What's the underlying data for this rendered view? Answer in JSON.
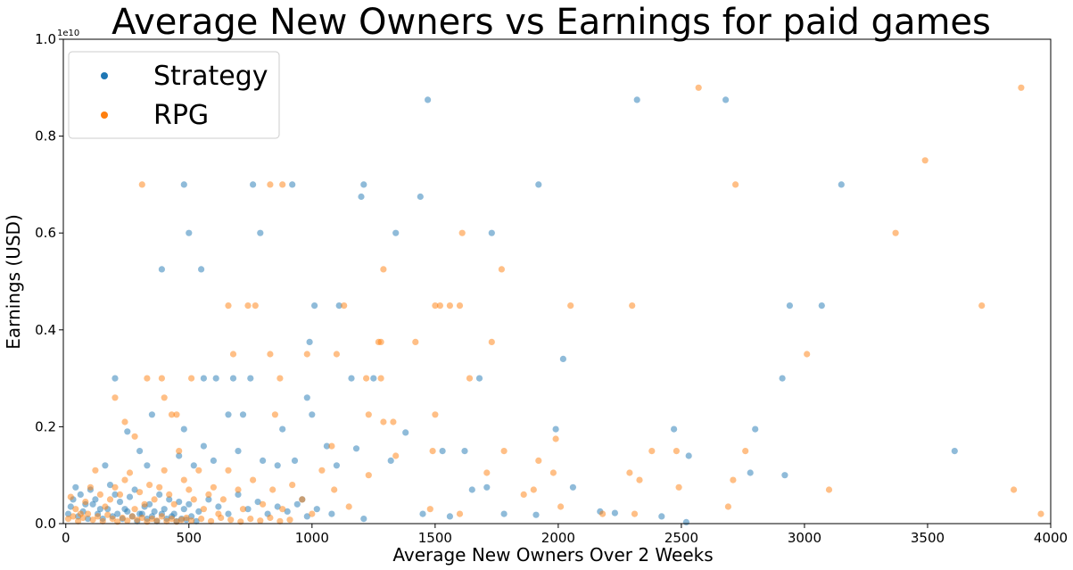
{
  "chart_data": {
    "type": "scatter",
    "title": "Average New Owners vs Earnings for paid games",
    "xlabel": "Average New Owners Over 2 Weeks",
    "ylabel": "Earnings (USD)",
    "y_offset_label": "1e10",
    "xlim": [
      -10,
      4000
    ],
    "ylim": [
      0,
      1.0
    ],
    "x_ticks": [
      0,
      500,
      1000,
      1500,
      2000,
      2500,
      3000,
      3500,
      4000
    ],
    "x_tick_labels": [
      "0",
      "500",
      "1000",
      "1500",
      "2000",
      "2500",
      "3000",
      "3500",
      "4000"
    ],
    "y_ticks": [
      0,
      0.2,
      0.4,
      0.6,
      0.8,
      1.0
    ],
    "y_tick_labels": [
      "0.0",
      "0.2",
      "0.4",
      "0.6",
      "0.8",
      "1.0"
    ],
    "legend_position": "top-left",
    "series": [
      {
        "name": "Strategy",
        "color": "#1f77b4",
        "points": [
          [
            1470,
            0.875
          ],
          [
            2320,
            0.875
          ],
          [
            2680,
            0.875
          ],
          [
            480,
            0.7
          ],
          [
            760,
            0.7
          ],
          [
            920,
            0.7
          ],
          [
            1210,
            0.7
          ],
          [
            1920,
            0.7
          ],
          [
            3150,
            0.7
          ],
          [
            1200,
            0.675
          ],
          [
            1440,
            0.675
          ],
          [
            500,
            0.6
          ],
          [
            790,
            0.6
          ],
          [
            1340,
            0.6
          ],
          [
            1730,
            0.6
          ],
          [
            390,
            0.525
          ],
          [
            550,
            0.525
          ],
          [
            1010,
            0.45
          ],
          [
            1110,
            0.45
          ],
          [
            2940,
            0.45
          ],
          [
            3070,
            0.45
          ],
          [
            990,
            0.375
          ],
          [
            2020,
            0.34
          ],
          [
            200,
            0.3
          ],
          [
            560,
            0.3
          ],
          [
            610,
            0.3
          ],
          [
            680,
            0.3
          ],
          [
            750,
            0.3
          ],
          [
            980,
            0.26
          ],
          [
            1160,
            0.3
          ],
          [
            1250,
            0.3
          ],
          [
            1680,
            0.3
          ],
          [
            2910,
            0.3
          ],
          [
            350,
            0.225
          ],
          [
            660,
            0.225
          ],
          [
            720,
            0.225
          ],
          [
            1000,
            0.225
          ],
          [
            1990,
            0.195
          ],
          [
            2470,
            0.195
          ],
          [
            2800,
            0.195
          ],
          [
            880,
            0.195
          ],
          [
            1380,
            0.188
          ],
          [
            1530,
            0.15
          ],
          [
            1620,
            0.15
          ],
          [
            3610,
            0.15
          ],
          [
            2530,
            0.14
          ],
          [
            2780,
            0.105
          ],
          [
            2920,
            0.1
          ],
          [
            480,
            0.195
          ],
          [
            560,
            0.16
          ],
          [
            1060,
            0.16
          ],
          [
            1180,
            0.155
          ],
          [
            250,
            0.19
          ],
          [
            300,
            0.15
          ],
          [
            330,
            0.12
          ],
          [
            460,
            0.14
          ],
          [
            520,
            0.12
          ],
          [
            600,
            0.13
          ],
          [
            700,
            0.15
          ],
          [
            800,
            0.13
          ],
          [
            860,
            0.12
          ],
          [
            930,
            0.13
          ],
          [
            1100,
            0.12
          ],
          [
            1320,
            0.13
          ],
          [
            1650,
            0.07
          ],
          [
            1710,
            0.075
          ],
          [
            2060,
            0.075
          ],
          [
            2170,
            0.025
          ],
          [
            2230,
            0.022
          ],
          [
            2420,
            0.015
          ],
          [
            2520,
            0.003
          ],
          [
            1780,
            0.02
          ],
          [
            1910,
            0.018
          ],
          [
            1450,
            0.02
          ],
          [
            1560,
            0.015
          ],
          [
            1080,
            0.02
          ],
          [
            1210,
            0.01
          ],
          [
            960,
            0.05
          ],
          [
            40,
            0.075
          ],
          [
            60,
            0.06
          ],
          [
            80,
            0.04
          ],
          [
            100,
            0.07
          ],
          [
            120,
            0.05
          ],
          [
            140,
            0.03
          ],
          [
            160,
            0.12
          ],
          [
            180,
            0.08
          ],
          [
            200,
            0.06
          ],
          [
            220,
            0.045
          ],
          [
            240,
            0.03
          ],
          [
            260,
            0.055
          ],
          [
            280,
            0.07
          ],
          [
            300,
            0.02
          ],
          [
            320,
            0.035
          ],
          [
            340,
            0.04
          ],
          [
            360,
            0.025
          ],
          [
            380,
            0.06
          ],
          [
            400,
            0.03
          ],
          [
            420,
            0.05
          ],
          [
            440,
            0.02
          ],
          [
            460,
            0.045
          ],
          [
            480,
            0.03
          ],
          [
            500,
            0.04
          ],
          [
            540,
            0.025
          ],
          [
            580,
            0.05
          ],
          [
            620,
            0.035
          ],
          [
            660,
            0.02
          ],
          [
            700,
            0.06
          ],
          [
            740,
            0.03
          ],
          [
            780,
            0.045
          ],
          [
            820,
            0.02
          ],
          [
            860,
            0.035
          ],
          [
            900,
            0.025
          ],
          [
            940,
            0.04
          ],
          [
            980,
            0.015
          ],
          [
            1020,
            0.03
          ],
          [
            10,
            0.02
          ],
          [
            20,
            0.035
          ],
          [
            30,
            0.05
          ],
          [
            50,
            0.015
          ],
          [
            70,
            0.025
          ],
          [
            90,
            0.01
          ],
          [
            110,
            0.04
          ],
          [
            130,
            0.02
          ],
          [
            150,
            0.01
          ],
          [
            170,
            0.03
          ],
          [
            190,
            0.015
          ],
          [
            210,
            0.02
          ],
          [
            230,
            0.01
          ],
          [
            250,
            0.025
          ],
          [
            270,
            0.015
          ],
          [
            290,
            0.005
          ],
          [
            310,
            0.02
          ],
          [
            330,
            0.01
          ],
          [
            350,
            0.015
          ],
          [
            370,
            0.005
          ],
          [
            390,
            0.02
          ],
          [
            410,
            0.01
          ],
          [
            430,
            0.015
          ],
          [
            450,
            0.005
          ],
          [
            470,
            0.01
          ],
          [
            490,
            0.008
          ],
          [
            510,
            0.015
          ],
          [
            530,
            0.005
          ]
        ]
      },
      {
        "name": "RPG",
        "color": "#ff7f0e",
        "points": [
          [
            2570,
            0.9
          ],
          [
            3880,
            0.9
          ],
          [
            3490,
            0.75
          ],
          [
            310,
            0.7
          ],
          [
            830,
            0.7
          ],
          [
            880,
            0.7
          ],
          [
            2720,
            0.7
          ],
          [
            1610,
            0.6
          ],
          [
            3370,
            0.6
          ],
          [
            1770,
            0.525
          ],
          [
            1290,
            0.525
          ],
          [
            660,
            0.45
          ],
          [
            740,
            0.45
          ],
          [
            770,
            0.45
          ],
          [
            1130,
            0.45
          ],
          [
            1500,
            0.45
          ],
          [
            1520,
            0.45
          ],
          [
            1560,
            0.45
          ],
          [
            1600,
            0.45
          ],
          [
            2050,
            0.45
          ],
          [
            2300,
            0.45
          ],
          [
            3720,
            0.45
          ],
          [
            1270,
            0.375
          ],
          [
            1280,
            0.375
          ],
          [
            1420,
            0.375
          ],
          [
            1730,
            0.375
          ],
          [
            680,
            0.35
          ],
          [
            830,
            0.35
          ],
          [
            980,
            0.35
          ],
          [
            1100,
            0.35
          ],
          [
            3010,
            0.35
          ],
          [
            200,
            0.26
          ],
          [
            330,
            0.3
          ],
          [
            390,
            0.3
          ],
          [
            400,
            0.26
          ],
          [
            510,
            0.3
          ],
          [
            870,
            0.3
          ],
          [
            1220,
            0.3
          ],
          [
            1280,
            0.3
          ],
          [
            1640,
            0.3
          ],
          [
            240,
            0.21
          ],
          [
            280,
            0.18
          ],
          [
            430,
            0.225
          ],
          [
            450,
            0.225
          ],
          [
            850,
            0.225
          ],
          [
            1230,
            0.225
          ],
          [
            1290,
            0.21
          ],
          [
            1330,
            0.21
          ],
          [
            1500,
            0.225
          ],
          [
            1990,
            0.175
          ],
          [
            1780,
            0.15
          ],
          [
            2380,
            0.15
          ],
          [
            2480,
            0.15
          ],
          [
            2760,
            0.15
          ],
          [
            1490,
            0.15
          ],
          [
            1340,
            0.14
          ],
          [
            1080,
            0.16
          ],
          [
            1920,
            0.13
          ],
          [
            1710,
            0.105
          ],
          [
            1980,
            0.105
          ],
          [
            2290,
            0.105
          ],
          [
            2710,
            0.09
          ],
          [
            3100,
            0.07
          ],
          [
            3850,
            0.07
          ],
          [
            1900,
            0.07
          ],
          [
            2180,
            0.02
          ],
          [
            1600,
            0.02
          ],
          [
            1480,
            0.03
          ],
          [
            2330,
            0.09
          ],
          [
            2490,
            0.075
          ],
          [
            2690,
            0.035
          ],
          [
            2310,
            0.02
          ],
          [
            3960,
            0.02
          ],
          [
            2010,
            0.035
          ],
          [
            1860,
            0.06
          ],
          [
            1230,
            0.1
          ],
          [
            20,
            0.055
          ],
          [
            40,
            0.03
          ],
          [
            60,
            0.02
          ],
          [
            80,
            0.045
          ],
          [
            100,
            0.075
          ],
          [
            120,
            0.11
          ],
          [
            140,
            0.06
          ],
          [
            160,
            0.035
          ],
          [
            180,
            0.05
          ],
          [
            200,
            0.075
          ],
          [
            220,
            0.06
          ],
          [
            240,
            0.09
          ],
          [
            260,
            0.105
          ],
          [
            280,
            0.03
          ],
          [
            300,
            0.065
          ],
          [
            320,
            0.04
          ],
          [
            340,
            0.08
          ],
          [
            360,
            0.05
          ],
          [
            380,
            0.075
          ],
          [
            400,
            0.11
          ],
          [
            420,
            0.06
          ],
          [
            440,
            0.04
          ],
          [
            460,
            0.15
          ],
          [
            480,
            0.09
          ],
          [
            500,
            0.07
          ],
          [
            520,
            0.05
          ],
          [
            540,
            0.11
          ],
          [
            560,
            0.03
          ],
          [
            580,
            0.06
          ],
          [
            600,
            0.075
          ],
          [
            620,
            0.02
          ],
          [
            640,
            0.05
          ],
          [
            660,
            0.11
          ],
          [
            700,
            0.07
          ],
          [
            720,
            0.03
          ],
          [
            760,
            0.09
          ],
          [
            800,
            0.04
          ],
          [
            840,
            0.07
          ],
          [
            880,
            0.03
          ],
          [
            920,
            0.08
          ],
          [
            960,
            0.05
          ],
          [
            1000,
            0.02
          ],
          [
            1040,
            0.11
          ],
          [
            1090,
            0.07
          ],
          [
            1150,
            0.035
          ],
          [
            10,
            0.01
          ],
          [
            30,
            0.015
          ],
          [
            50,
            0.005
          ],
          [
            70,
            0.012
          ],
          [
            90,
            0.02
          ],
          [
            110,
            0.008
          ],
          [
            130,
            0.015
          ],
          [
            150,
            0.005
          ],
          [
            170,
            0.018
          ],
          [
            190,
            0.01
          ],
          [
            210,
            0.004
          ],
          [
            230,
            0.012
          ],
          [
            250,
            0.006
          ],
          [
            270,
            0.015
          ],
          [
            290,
            0.008
          ],
          [
            310,
            0.012
          ],
          [
            330,
            0.004
          ],
          [
            350,
            0.01
          ],
          [
            370,
            0.006
          ],
          [
            390,
            0.015
          ],
          [
            410,
            0.005
          ],
          [
            430,
            0.01
          ],
          [
            450,
            0.004
          ],
          [
            470,
            0.008
          ],
          [
            490,
            0.012
          ],
          [
            510,
            0.006
          ],
          [
            550,
            0.01
          ],
          [
            590,
            0.005
          ],
          [
            630,
            0.012
          ],
          [
            670,
            0.008
          ],
          [
            710,
            0.004
          ],
          [
            750,
            0.01
          ],
          [
            790,
            0.006
          ],
          [
            830,
            0.012
          ],
          [
            870,
            0.005
          ],
          [
            910,
            0.008
          ]
        ]
      }
    ]
  }
}
